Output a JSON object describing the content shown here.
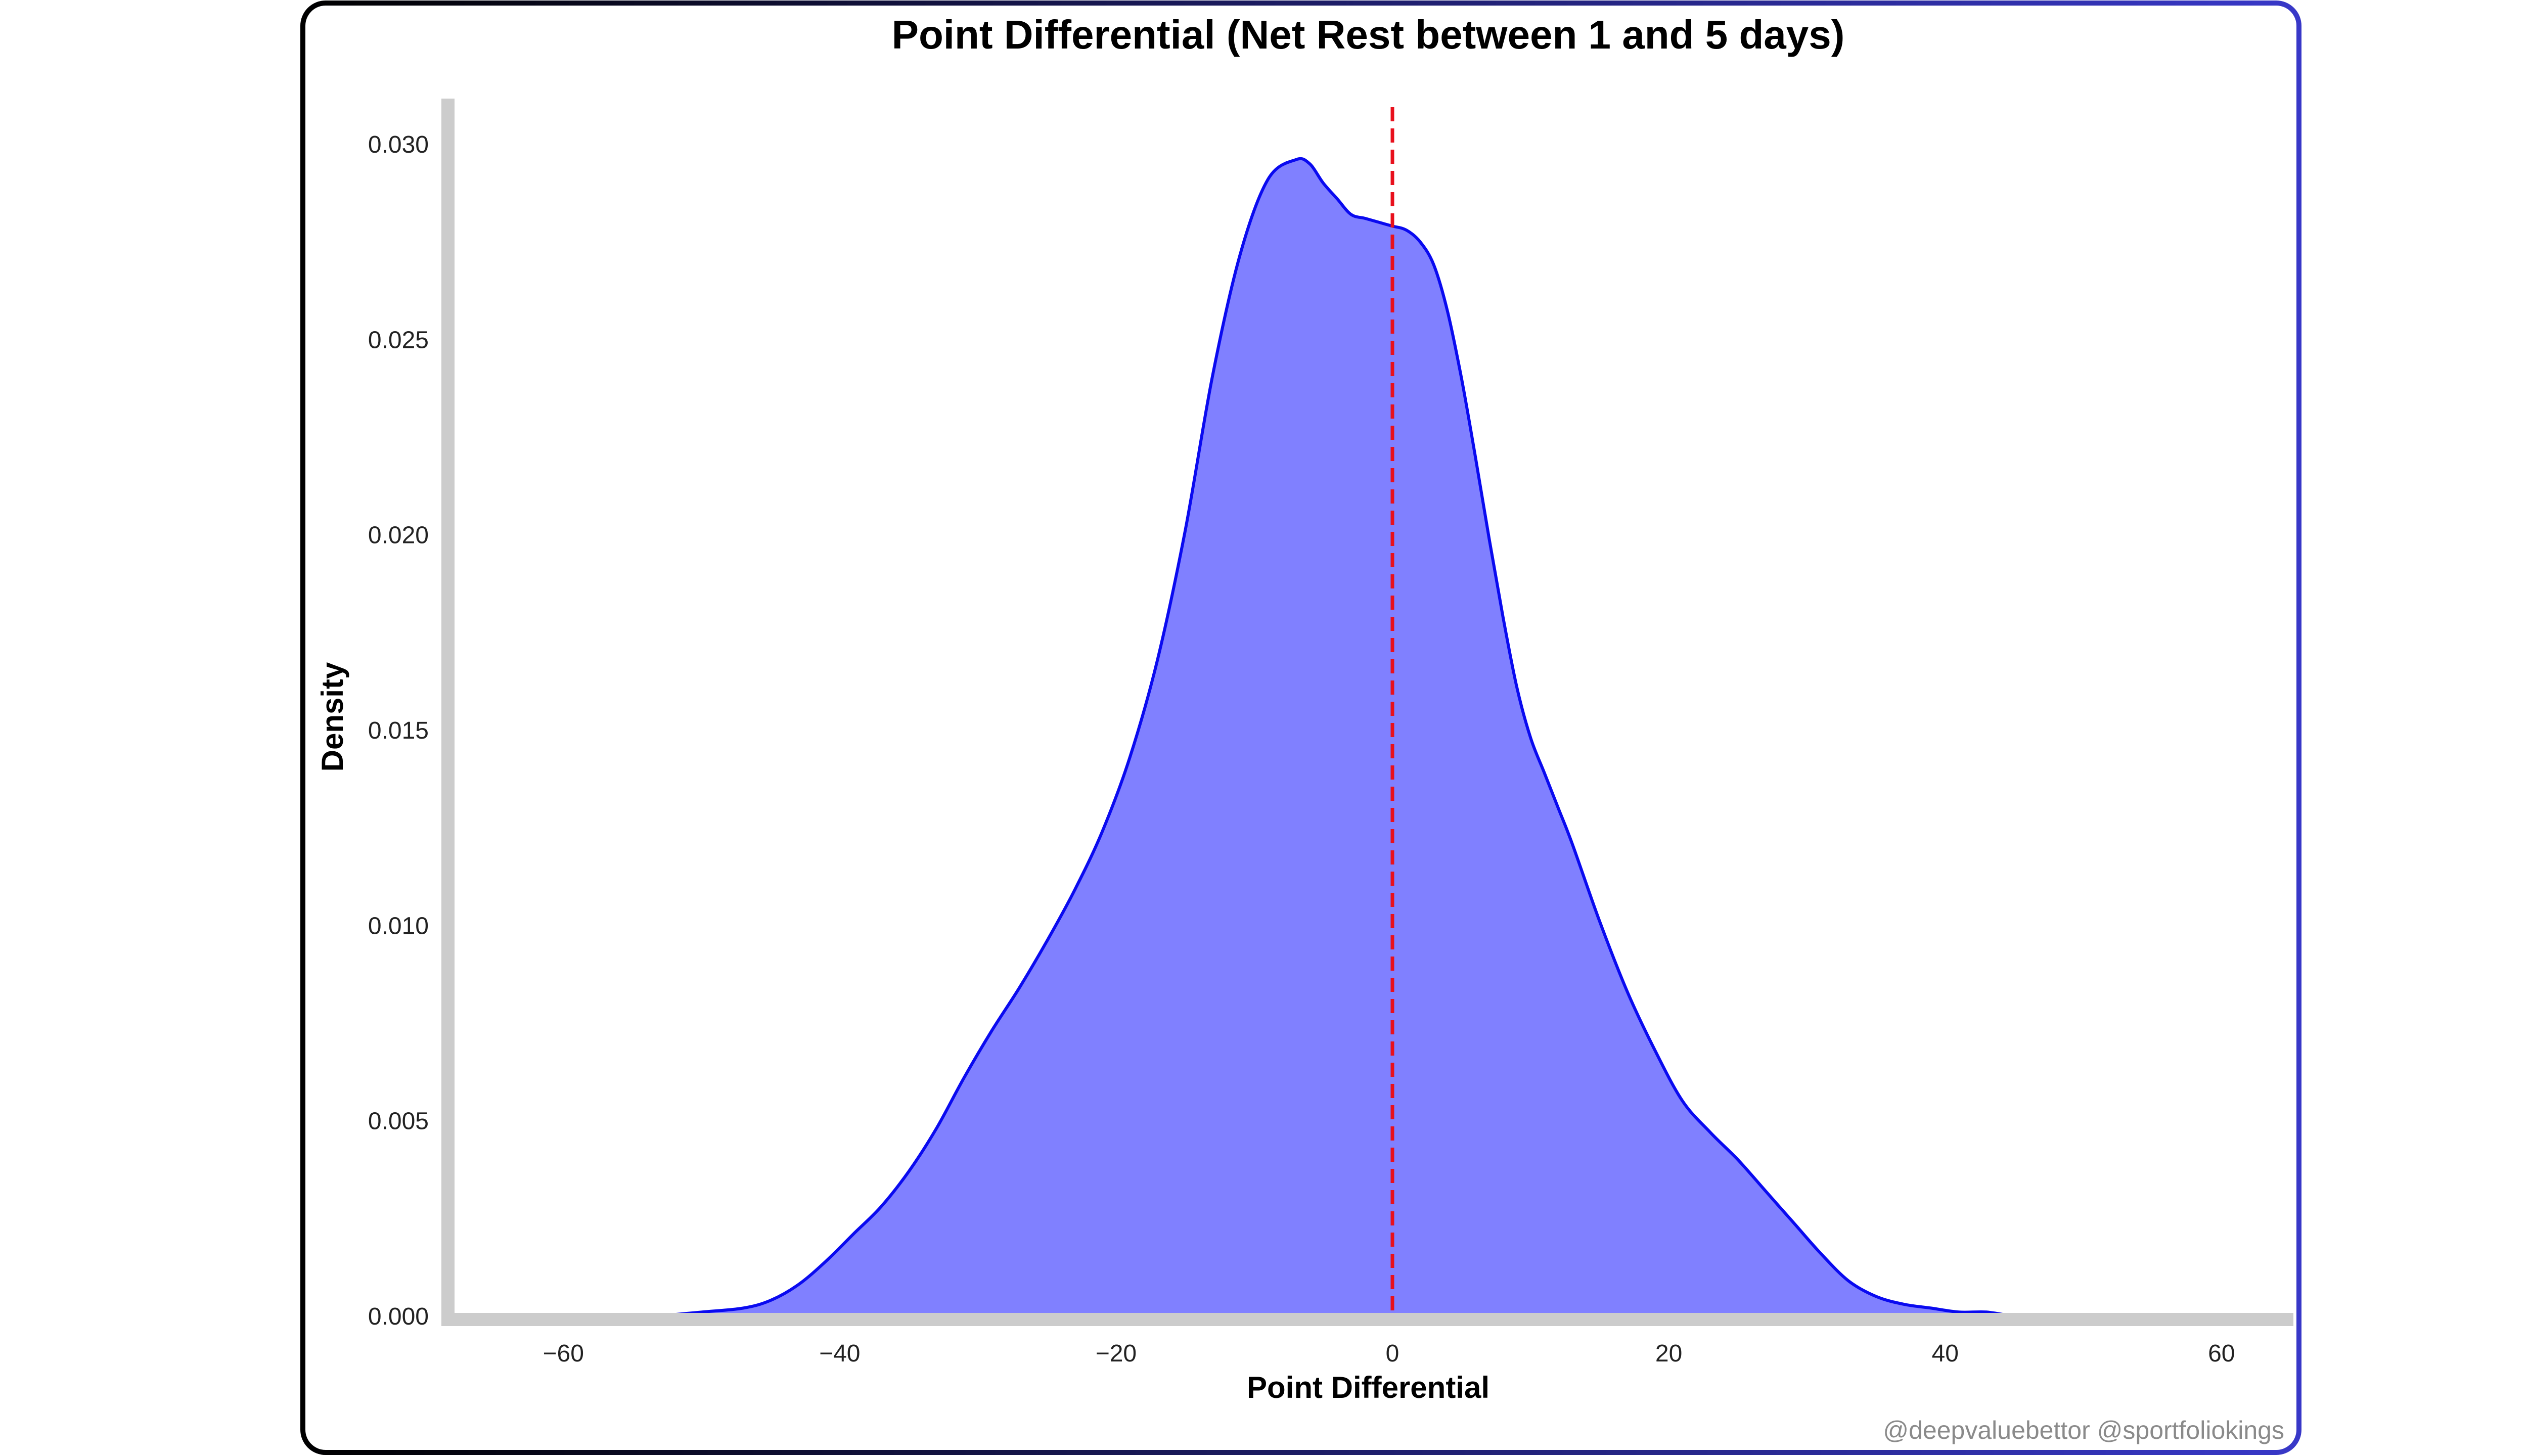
{
  "chart_data": {
    "type": "area",
    "title": "Point Differential (Net Rest between 1 and 5 days)",
    "xlabel": "Point Differential",
    "ylabel": "Density",
    "xlim": [
      -68,
      65
    ],
    "ylim": [
      0,
      0.0312
    ],
    "x_ticks": [
      -60,
      -40,
      -20,
      0,
      20,
      40,
      60
    ],
    "x_tick_labels": [
      "−60",
      "−40",
      "−20",
      "0",
      "20",
      "40",
      "60"
    ],
    "y_ticks": [
      0.0,
      0.005,
      0.01,
      0.015,
      0.02,
      0.025,
      0.03
    ],
    "y_tick_labels": [
      "0.000",
      "0.005",
      "0.010",
      "0.015",
      "0.020",
      "0.025",
      "0.030"
    ],
    "grid": false,
    "reference_line": {
      "x": 0,
      "color": "#e8101c",
      "style": "dashed"
    },
    "series": [
      {
        "fill_color": "#8080ff",
        "line_color": "#0a0af0",
        "x": [
          -53,
          -50,
          -47,
          -45,
          -43,
          -41,
          -39,
          -37,
          -35,
          -33,
          -31,
          -29,
          -27,
          -25,
          -23,
          -21,
          -19,
          -17,
          -15,
          -13,
          -11,
          -9,
          -7,
          -6,
          -5,
          -4,
          -3,
          -2,
          -1,
          0,
          1,
          2,
          3,
          4,
          5,
          6,
          7,
          8,
          9,
          10,
          11,
          12,
          13,
          15,
          17,
          19,
          21,
          23,
          25,
          27,
          29,
          31,
          33,
          35,
          37,
          39,
          41,
          43,
          45,
          47,
          49
        ],
        "y": [
          0.0,
          0.0001,
          0.0002,
          0.0004,
          0.0008,
          0.0014,
          0.0021,
          0.0028,
          0.0037,
          0.0048,
          0.0061,
          0.0073,
          0.0084,
          0.0096,
          0.0109,
          0.0124,
          0.0143,
          0.0168,
          0.0201,
          0.0241,
          0.0272,
          0.0291,
          0.0296,
          0.0295,
          0.029,
          0.0286,
          0.0282,
          0.0281,
          0.028,
          0.0279,
          0.0278,
          0.0275,
          0.0269,
          0.0257,
          0.024,
          0.022,
          0.0199,
          0.0179,
          0.0161,
          0.0148,
          0.0139,
          0.013,
          0.0121,
          0.0101,
          0.0083,
          0.0068,
          0.0055,
          0.0047,
          0.004,
          0.0032,
          0.0024,
          0.0016,
          0.0009,
          0.0005,
          0.0003,
          0.0002,
          0.0001,
          0.0001,
          0.0,
          0.0,
          0.0
        ]
      }
    ],
    "frame_gradient": [
      "#000000",
      "#3838c8"
    ]
  },
  "watermark": "@deepvaluebettor @sportfoliokings"
}
